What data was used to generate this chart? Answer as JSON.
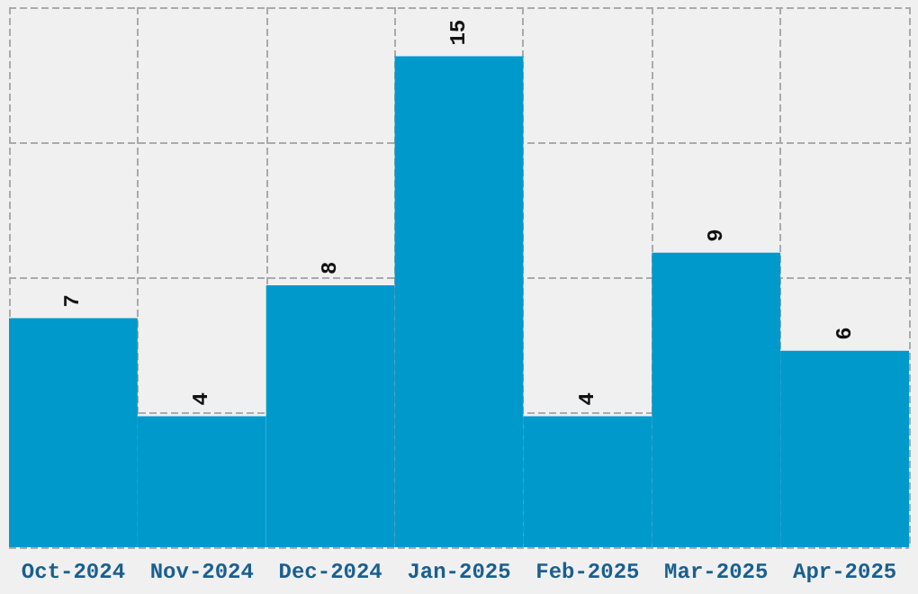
{
  "chart_data": {
    "type": "bar",
    "categories": [
      "Oct-2024",
      "Nov-2024",
      "Dec-2024",
      "Jan-2025",
      "Feb-2025",
      "Mar-2025",
      "Apr-2025"
    ],
    "values": [
      7,
      4,
      8,
      15,
      4,
      9,
      6
    ],
    "color": "#0099cc",
    "data_labels": true,
    "grid": true,
    "tick_labels": "x",
    "ylim": [
      0,
      16.5
    ],
    "yticks": [
      {
        "value": 0,
        "label": null
      },
      {
        "value": 4.125,
        "label": null
      },
      {
        "value": 8.25,
        "label": null
      },
      {
        "value": 12.375,
        "label": null
      },
      {
        "value": 16.5,
        "label": null
      }
    ]
  }
}
